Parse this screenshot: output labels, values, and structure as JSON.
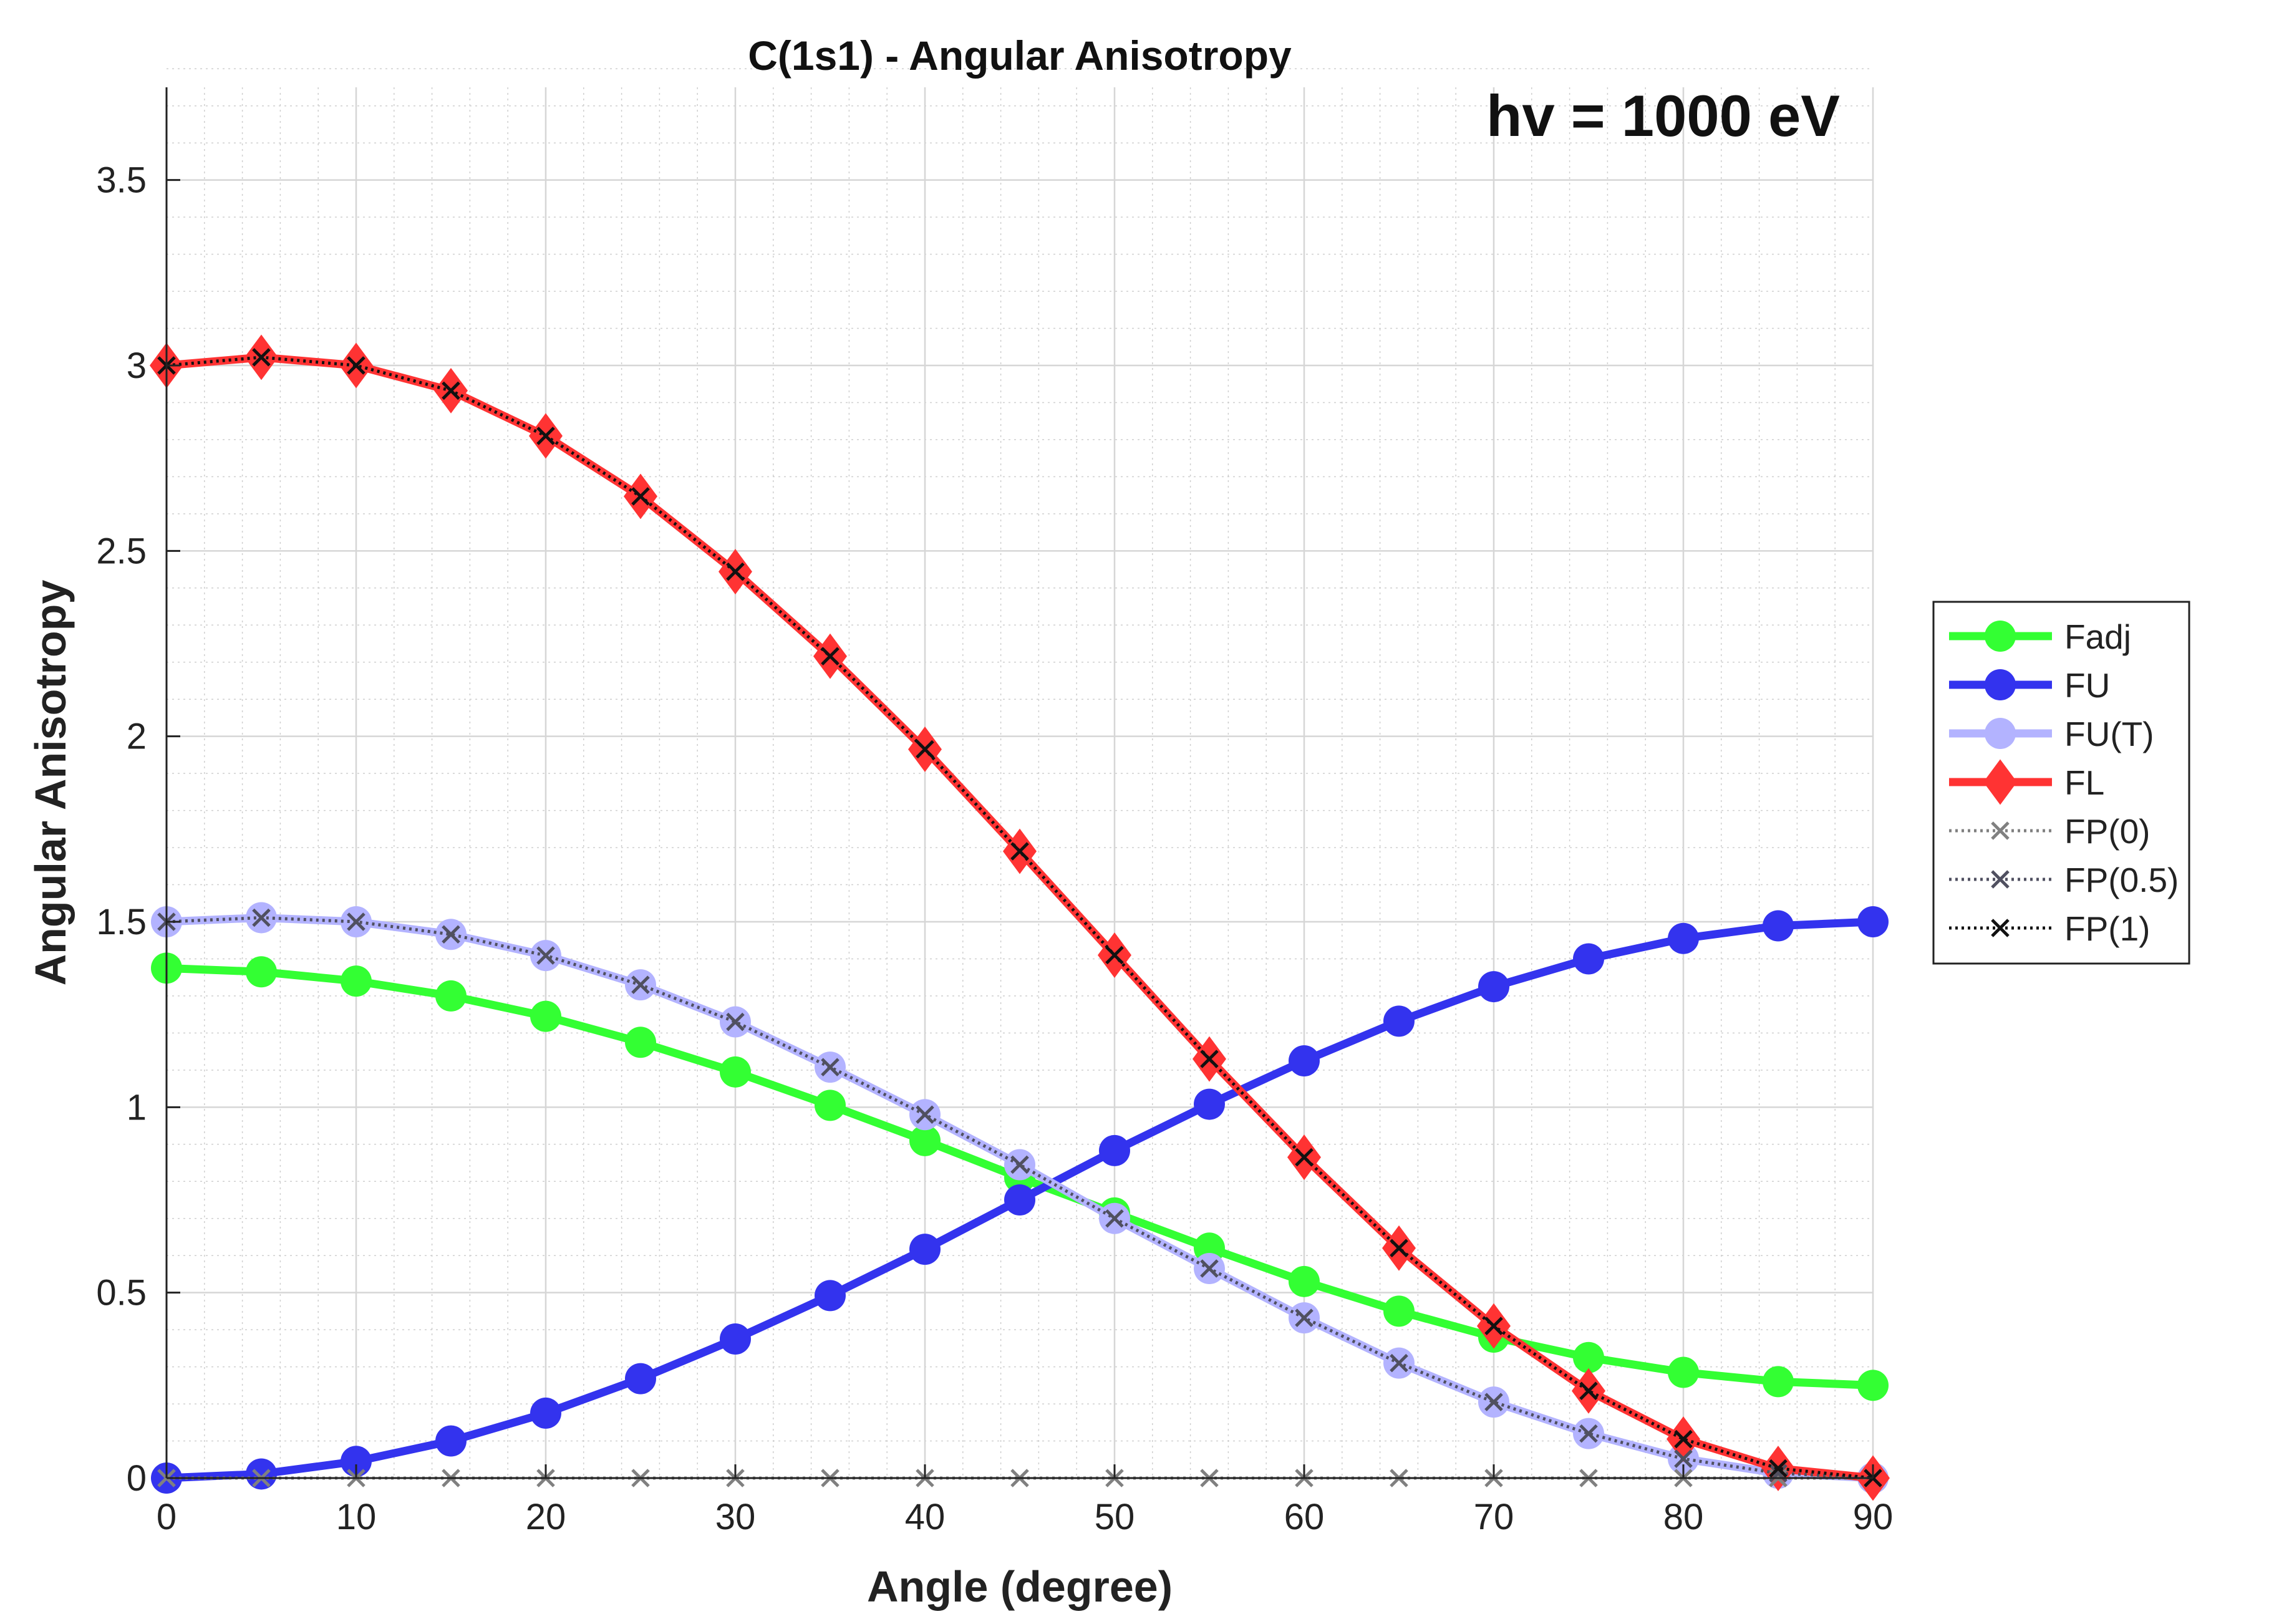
{
  "chart_data": {
    "type": "line",
    "title": "C(1s1) - Angular Anisotropy",
    "annotation": "hv = 1000 eV",
    "xlabel": "Angle (degree)",
    "ylabel": "Angular Anisotropy",
    "xlim": [
      0,
      90
    ],
    "ylim": [
      0,
      3.75
    ],
    "x_ticks": [
      0,
      10,
      20,
      30,
      40,
      50,
      60,
      70,
      80,
      90
    ],
    "y_ticks": [
      0,
      0.5,
      1,
      1.5,
      2,
      2.5,
      3,
      3.5
    ],
    "y_tick_labels": [
      "0",
      "0.5",
      "1",
      "1.5",
      "2",
      "2.5",
      "3",
      "3.5"
    ],
    "grid": true,
    "minor_grid": true,
    "legend_position": "outside-right",
    "x": [
      0,
      5,
      10,
      15,
      20,
      25,
      30,
      35,
      40,
      45,
      50,
      55,
      60,
      65,
      70,
      75,
      80,
      85,
      90
    ],
    "series": [
      {
        "name": "Fadj",
        "color": "#33ff33",
        "marker": "circle",
        "line": "solid",
        "values": [
          1.375,
          1.365,
          1.34,
          1.3,
          1.245,
          1.175,
          1.095,
          1.005,
          0.91,
          0.81,
          0.715,
          0.62,
          0.53,
          0.45,
          0.38,
          0.325,
          0.285,
          0.26,
          0.25
        ]
      },
      {
        "name": "FU",
        "color": "#3333ee",
        "marker": "circle",
        "line": "solid",
        "values": [
          0.0,
          0.011,
          0.045,
          0.1,
          0.175,
          0.268,
          0.375,
          0.492,
          0.617,
          0.75,
          0.883,
          1.008,
          1.125,
          1.232,
          1.325,
          1.4,
          1.455,
          1.489,
          1.5
        ]
      },
      {
        "name": "FU(T)",
        "color": "#b3b3ff",
        "marker": "circle",
        "line": "solid",
        "values": [
          1.5,
          1.511,
          1.5,
          1.466,
          1.409,
          1.33,
          1.23,
          1.108,
          0.98,
          0.845,
          0.7,
          0.565,
          0.432,
          0.31,
          0.205,
          0.12,
          0.052,
          0.013,
          0.0
        ]
      },
      {
        "name": "FL",
        "color": "#ff3333",
        "marker": "diamond",
        "line": "solid",
        "values": [
          3.0,
          3.022,
          3.0,
          2.932,
          2.81,
          2.647,
          2.444,
          2.216,
          1.965,
          1.69,
          1.41,
          1.13,
          0.865,
          0.62,
          0.41,
          0.235,
          0.105,
          0.026,
          0.0
        ]
      },
      {
        "name": "FP(0)",
        "color": "#808080",
        "marker": "x",
        "line": "dotted",
        "values": [
          0,
          0,
          0,
          0,
          0,
          0,
          0,
          0,
          0,
          0,
          0,
          0,
          0,
          0,
          0,
          0,
          0,
          0,
          0
        ]
      },
      {
        "name": "FP(0.5)",
        "color": "#505060",
        "marker": "x",
        "line": "dotted",
        "values": [
          1.5,
          1.511,
          1.5,
          1.466,
          1.409,
          1.33,
          1.23,
          1.108,
          0.98,
          0.845,
          0.7,
          0.565,
          0.432,
          0.31,
          0.205,
          0.12,
          0.052,
          0.013,
          0.0
        ]
      },
      {
        "name": "FP(1)",
        "color": "#111111",
        "marker": "x",
        "line": "dotted",
        "values": [
          3.0,
          3.022,
          3.0,
          2.932,
          2.81,
          2.647,
          2.444,
          2.216,
          1.965,
          1.69,
          1.41,
          1.13,
          0.865,
          0.62,
          0.41,
          0.235,
          0.105,
          0.026,
          0.0
        ]
      }
    ]
  }
}
